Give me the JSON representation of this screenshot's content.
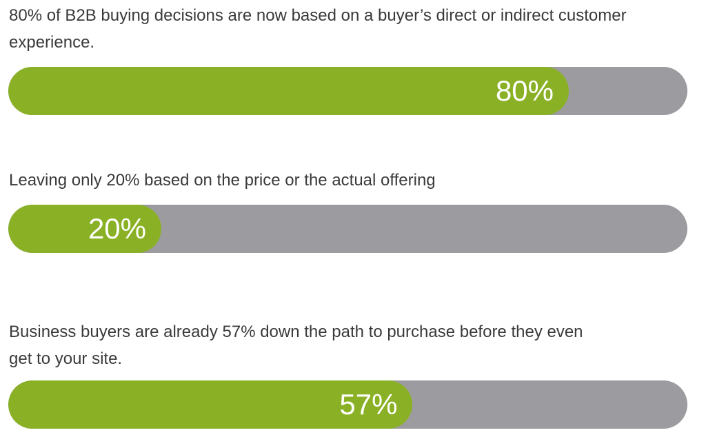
{
  "colors": {
    "fill": "#8ab125",
    "track": "#9b9ba0"
  },
  "chart_data": {
    "type": "bar",
    "orientation": "horizontal",
    "xlim": [
      0,
      100
    ],
    "items": [
      {
        "caption": "80% of B2B buying decisions are now based on a buyer’s direct or indirect customer experience.",
        "value": 80,
        "label": "80%"
      },
      {
        "caption": "Leaving only 20% based on the price or the actual offering",
        "value": 20,
        "label": "20%"
      },
      {
        "caption": "Business buyers are already 57% down the path to purchase before they even get to your site.",
        "value": 57,
        "label": "57%"
      }
    ]
  }
}
